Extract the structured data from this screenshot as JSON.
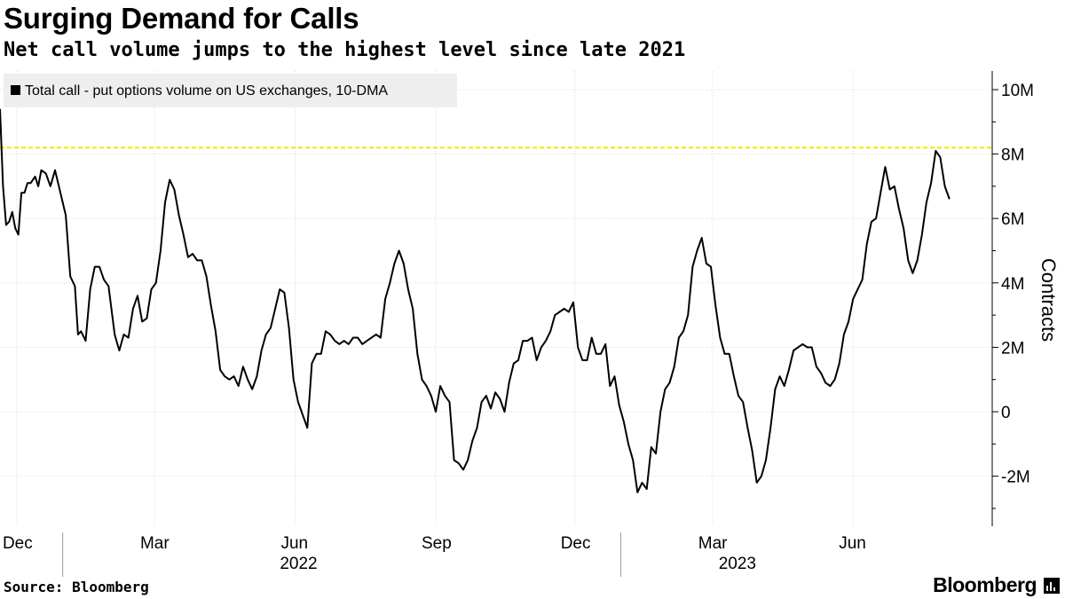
{
  "header": {
    "title": "Surging Demand for Calls",
    "subtitle": "Net call volume jumps to the highest level since late 2021"
  },
  "footer": {
    "source": "Source: Bloomberg",
    "brand": "Bloomberg"
  },
  "colors": {
    "line": "#000000",
    "reference_line": "#f2e600",
    "grid": "#d9d9d9",
    "legend_bg": "#eeeeee"
  },
  "chart_data": {
    "type": "line",
    "legend": [
      "Total call - put options volume on US exchanges, 10-DMA"
    ],
    "legend_placement": "top-left",
    "ylabel": "Contracts",
    "ylim": [
      -3500000,
      10500000
    ],
    "yticks": [
      {
        "value": 10000000,
        "label": "10M"
      },
      {
        "value": 8000000,
        "label": "8M"
      },
      {
        "value": 6000000,
        "label": "6M"
      },
      {
        "value": 4000000,
        "label": "4M"
      },
      {
        "value": 2000000,
        "label": "2M"
      },
      {
        "value": 0,
        "label": "0"
      },
      {
        "value": -2000000,
        "label": "-2M"
      }
    ],
    "xlim": [
      "2021-11-20",
      "2023-08-31"
    ],
    "xticks": [
      {
        "date": "2021-12-01",
        "label": "Dec"
      },
      {
        "date": "2022-03-01",
        "label": "Mar"
      },
      {
        "date": "2022-06-01",
        "label": "Jun"
      },
      {
        "date": "2022-09-01",
        "label": "Sep"
      },
      {
        "date": "2022-12-01",
        "label": "Dec"
      },
      {
        "date": "2023-03-01",
        "label": "Mar"
      },
      {
        "date": "2023-06-01",
        "label": "Jun"
      }
    ],
    "year_labels": [
      {
        "date": "2022-06-01",
        "label": "2022"
      },
      {
        "date": "2023-03-15",
        "label": "2023"
      }
    ],
    "year_separators": [
      "2021-12-31",
      "2022-12-31"
    ],
    "grid": true,
    "reference_line": {
      "value": 8200000,
      "style": "dashed"
    },
    "series": [
      {
        "name": "Total call - put options volume on US exchanges, 10-DMA",
        "x": [
          "2021-11-20",
          "2021-11-22",
          "2021-11-24",
          "2021-11-26",
          "2021-11-28",
          "2021-11-30",
          "2021-12-02",
          "2021-12-04",
          "2021-12-06",
          "2021-12-08",
          "2021-12-10",
          "2021-12-13",
          "2021-12-15",
          "2021-12-17",
          "2021-12-20",
          "2021-12-23",
          "2021-12-26",
          "2021-12-29",
          "2022-01-02",
          "2022-01-05",
          "2022-01-08",
          "2022-01-10",
          "2022-01-12",
          "2022-01-15",
          "2022-01-18",
          "2022-01-21",
          "2022-01-24",
          "2022-01-27",
          "2022-01-30",
          "2022-02-03",
          "2022-02-06",
          "2022-02-09",
          "2022-02-12",
          "2022-02-15",
          "2022-02-18",
          "2022-02-21",
          "2022-02-24",
          "2022-02-27",
          "2022-03-02",
          "2022-03-05",
          "2022-03-08",
          "2022-03-11",
          "2022-03-14",
          "2022-03-17",
          "2022-03-20",
          "2022-03-23",
          "2022-03-26",
          "2022-03-29",
          "2022-04-01",
          "2022-04-04",
          "2022-04-07",
          "2022-04-10",
          "2022-04-13",
          "2022-04-16",
          "2022-04-19",
          "2022-04-22",
          "2022-04-25",
          "2022-04-28",
          "2022-05-01",
          "2022-05-04",
          "2022-05-07",
          "2022-05-10",
          "2022-05-13",
          "2022-05-16",
          "2022-05-19",
          "2022-05-22",
          "2022-05-25",
          "2022-05-28",
          "2022-05-31",
          "2022-06-03",
          "2022-06-06",
          "2022-06-09",
          "2022-06-12",
          "2022-06-15",
          "2022-06-18",
          "2022-06-21",
          "2022-06-24",
          "2022-06-27",
          "2022-06-30",
          "2022-07-03",
          "2022-07-06",
          "2022-07-09",
          "2022-07-12",
          "2022-07-15",
          "2022-07-18",
          "2022-07-21",
          "2022-07-24",
          "2022-07-27",
          "2022-07-30",
          "2022-08-02",
          "2022-08-05",
          "2022-08-08",
          "2022-08-11",
          "2022-08-14",
          "2022-08-17",
          "2022-08-20",
          "2022-08-23",
          "2022-08-26",
          "2022-08-29",
          "2022-09-01",
          "2022-09-04",
          "2022-09-07",
          "2022-09-10",
          "2022-09-13",
          "2022-09-16",
          "2022-09-19",
          "2022-09-22",
          "2022-09-25",
          "2022-09-28",
          "2022-10-01",
          "2022-10-04",
          "2022-10-07",
          "2022-10-10",
          "2022-10-13",
          "2022-10-16",
          "2022-10-19",
          "2022-10-22",
          "2022-10-25",
          "2022-10-28",
          "2022-10-31",
          "2022-11-03",
          "2022-11-06",
          "2022-11-09",
          "2022-11-12",
          "2022-11-15",
          "2022-11-18",
          "2022-11-21",
          "2022-11-24",
          "2022-11-27",
          "2022-11-30",
          "2022-12-03",
          "2022-12-06",
          "2022-12-09",
          "2022-12-12",
          "2022-12-15",
          "2022-12-18",
          "2022-12-21",
          "2022-12-24",
          "2022-12-27",
          "2022-12-30",
          "2023-01-02",
          "2023-01-05",
          "2023-01-08",
          "2023-01-11",
          "2023-01-14",
          "2023-01-17",
          "2023-01-20",
          "2023-01-23",
          "2023-01-26",
          "2023-01-29",
          "2023-02-01",
          "2023-02-04",
          "2023-02-07",
          "2023-02-10",
          "2023-02-13",
          "2023-02-16",
          "2023-02-19",
          "2023-02-22",
          "2023-02-25",
          "2023-02-28",
          "2023-03-03",
          "2023-03-06",
          "2023-03-09",
          "2023-03-12",
          "2023-03-15",
          "2023-03-18",
          "2023-03-21",
          "2023-03-24",
          "2023-03-27",
          "2023-03-30",
          "2023-04-02",
          "2023-04-05",
          "2023-04-08",
          "2023-04-11",
          "2023-04-14",
          "2023-04-17",
          "2023-04-20",
          "2023-04-23",
          "2023-04-26",
          "2023-04-29",
          "2023-05-02",
          "2023-05-05",
          "2023-05-08",
          "2023-05-11",
          "2023-05-14",
          "2023-05-17",
          "2023-05-20",
          "2023-05-23",
          "2023-05-26",
          "2023-05-29",
          "2023-06-01",
          "2023-06-04",
          "2023-06-07",
          "2023-06-10",
          "2023-06-13",
          "2023-06-16",
          "2023-06-19",
          "2023-06-22",
          "2023-06-25",
          "2023-06-28",
          "2023-07-01",
          "2023-07-04",
          "2023-07-07",
          "2023-07-10",
          "2023-07-13",
          "2023-07-16",
          "2023-07-19",
          "2023-07-22",
          "2023-07-25",
          "2023-07-28",
          "2023-07-31",
          "2023-08-03"
        ],
        "y": [
          9400000,
          7000000,
          5800000,
          5900000,
          6200000,
          5700000,
          5500000,
          6800000,
          6800000,
          7100000,
          7100000,
          7300000,
          7000000,
          7500000,
          7400000,
          7000000,
          7500000,
          6900000,
          6100000,
          4200000,
          3900000,
          2400000,
          2500000,
          2200000,
          3800000,
          4500000,
          4500000,
          4100000,
          3900000,
          2400000,
          1900000,
          2400000,
          2300000,
          3200000,
          3600000,
          2800000,
          2900000,
          3800000,
          4000000,
          5000000,
          6500000,
          7200000,
          6900000,
          6100000,
          5500000,
          4800000,
          4900000,
          4700000,
          4700000,
          4200000,
          3300000,
          2500000,
          1300000,
          1100000,
          1000000,
          1100000,
          800000,
          1400000,
          1000000,
          700000,
          1100000,
          1900000,
          2400000,
          2600000,
          3200000,
          3800000,
          3700000,
          2600000,
          1000000,
          300000,
          -100000,
          -500000,
          1500000,
          1800000,
          1800000,
          2500000,
          2400000,
          2200000,
          2100000,
          2200000,
          2100000,
          2300000,
          2300000,
          2100000,
          2200000,
          2300000,
          2400000,
          2300000,
          3500000,
          4000000,
          4600000,
          5000000,
          4600000,
          3800000,
          3200000,
          1800000,
          1000000,
          800000,
          500000,
          0,
          800000,
          500000,
          300000,
          -1500000,
          -1600000,
          -1800000,
          -1500000,
          -900000,
          -500000,
          300000,
          500000,
          100000,
          600000,
          400000,
          0,
          900000,
          1500000,
          1600000,
          2200000,
          2200000,
          2300000,
          1600000,
          2000000,
          2200000,
          2500000,
          3000000,
          3100000,
          3200000,
          3100000,
          3400000,
          2000000,
          1600000,
          1600000,
          2300000,
          1800000,
          1800000,
          2100000,
          800000,
          1100000,
          200000,
          -300000,
          -1000000,
          -1500000,
          -2500000,
          -2200000,
          -2400000,
          -1100000,
          -1300000,
          0,
          700000,
          900000,
          1400000,
          2300000,
          2500000,
          3000000,
          4500000,
          5000000,
          5400000,
          4600000,
          4500000,
          3300000,
          2300000,
          1800000,
          1800000,
          1100000,
          500000,
          300000,
          -500000,
          -1200000,
          -2200000,
          -2000000,
          -1500000,
          -500000,
          700000,
          1100000,
          800000,
          1300000,
          1900000,
          2000000,
          2100000,
          2000000,
          2000000,
          1400000,
          1200000,
          900000,
          800000,
          1000000,
          1500000,
          2400000,
          2800000,
          3500000,
          3800000,
          4100000,
          5200000,
          5900000,
          6000000,
          6800000,
          7600000,
          6900000,
          7000000,
          6300000,
          5700000,
          4700000,
          4300000,
          4700000,
          5500000,
          6500000,
          7100000,
          8100000,
          7900000,
          7000000,
          6600000
        ]
      }
    ]
  }
}
